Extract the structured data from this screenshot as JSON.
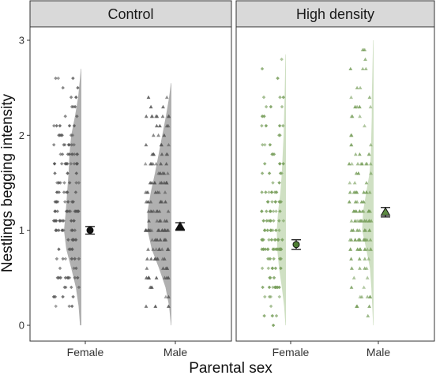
{
  "chart_data": {
    "type": "scatter",
    "subtype": "raincloud (half-violin + jittered points + mean ± SE)",
    "xlabel": "Parental sex",
    "ylabel": "Nestlings begging intensity",
    "ylim": [
      0,
      3
    ],
    "y_ticks": [
      "0",
      "1",
      "2",
      "3"
    ],
    "categories": [
      "Female",
      "Male"
    ],
    "grid": false,
    "legend": "none",
    "colors": {
      "control_fill": "#b0b0b0",
      "control_points": "#555555",
      "high_fill": "#cfe0c3",
      "high_points": "#7aa05e",
      "mean_marker": "#111111",
      "mean_marker_high_female": "#4e7d33",
      "mean_marker_high_male": "#5c8a42"
    },
    "panels": [
      {
        "strip_label": "Control",
        "groups": [
          {
            "sex": "Female",
            "marker": "circle",
            "mean": 1.0,
            "se": 0.04,
            "data_min": 0.0,
            "data_max": 2.7,
            "density": [
              [
                0.0,
                0.03
              ],
              [
                0.2,
                0.06
              ],
              [
                0.4,
                0.12
              ],
              [
                0.6,
                0.22
              ],
              [
                0.8,
                0.33
              ],
              [
                1.0,
                0.38
              ],
              [
                1.2,
                0.34
              ],
              [
                1.4,
                0.31
              ],
              [
                1.6,
                0.28
              ],
              [
                1.8,
                0.26
              ],
              [
                2.0,
                0.22
              ],
              [
                2.2,
                0.14
              ],
              [
                2.4,
                0.07
              ],
              [
                2.6,
                0.03
              ],
              [
                2.7,
                0.01
              ]
            ]
          },
          {
            "sex": "Male",
            "marker": "triangle",
            "mean": 1.04,
            "se": 0.04,
            "data_min": 0.0,
            "data_max": 2.55,
            "density": [
              [
                0.0,
                0.01
              ],
              [
                0.2,
                0.05
              ],
              [
                0.4,
                0.13
              ],
              [
                0.6,
                0.27
              ],
              [
                0.8,
                0.43
              ],
              [
                1.0,
                0.52
              ],
              [
                1.2,
                0.52
              ],
              [
                1.4,
                0.45
              ],
              [
                1.6,
                0.36
              ],
              [
                1.8,
                0.28
              ],
              [
                2.0,
                0.2
              ],
              [
                2.2,
                0.12
              ],
              [
                2.4,
                0.05
              ],
              [
                2.55,
                0.01
              ]
            ]
          }
        ]
      },
      {
        "strip_label": "High density",
        "groups": [
          {
            "sex": "Female",
            "marker": "circle",
            "mean": 0.85,
            "se": 0.05,
            "data_min": 0.0,
            "data_max": 2.85,
            "density": [
              [
                0.0,
                0.01
              ],
              [
                0.2,
                0.04
              ],
              [
                0.4,
                0.09
              ],
              [
                0.6,
                0.15
              ],
              [
                0.8,
                0.19
              ],
              [
                1.0,
                0.2
              ],
              [
                1.2,
                0.17
              ],
              [
                1.4,
                0.12
              ],
              [
                1.6,
                0.09
              ],
              [
                1.8,
                0.07
              ],
              [
                2.0,
                0.05
              ],
              [
                2.2,
                0.04
              ],
              [
                2.4,
                0.03
              ],
              [
                2.6,
                0.02
              ],
              [
                2.85,
                0.01
              ]
            ]
          },
          {
            "sex": "Male",
            "marker": "triangle",
            "mean": 1.19,
            "se": 0.05,
            "data_min": 0.0,
            "data_max": 3.0,
            "density": [
              [
                0.0,
                0.01
              ],
              [
                0.2,
                0.03
              ],
              [
                0.4,
                0.05
              ],
              [
                0.6,
                0.08
              ],
              [
                0.8,
                0.16
              ],
              [
                1.0,
                0.25
              ],
              [
                1.2,
                0.23
              ],
              [
                1.4,
                0.16
              ],
              [
                1.6,
                0.09
              ],
              [
                1.8,
                0.06
              ],
              [
                2.0,
                0.05
              ],
              [
                2.2,
                0.04
              ],
              [
                2.4,
                0.04
              ],
              [
                2.6,
                0.03
              ],
              [
                2.8,
                0.02
              ],
              [
                3.0,
                0.01
              ]
            ]
          }
        ]
      }
    ]
  }
}
